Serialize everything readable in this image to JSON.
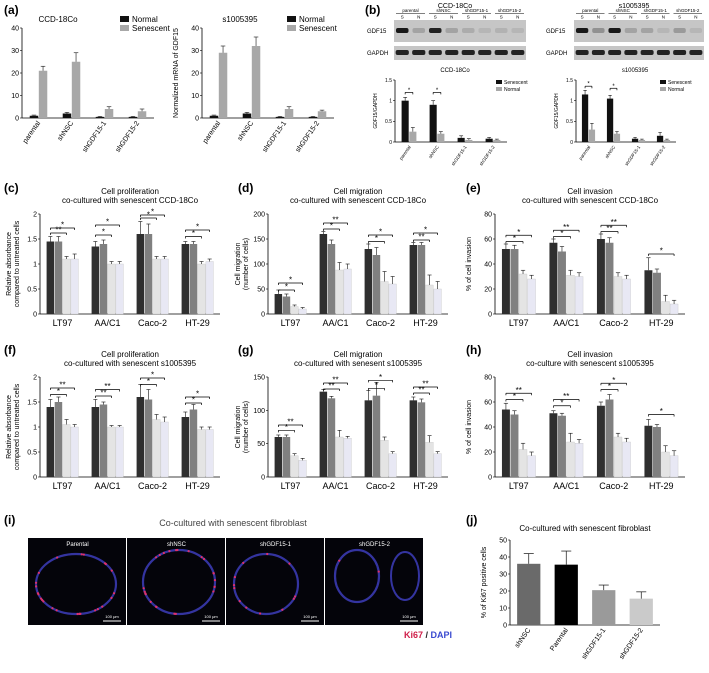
{
  "palette": {
    "normal": "#111111",
    "senescent": "#a8a8a8",
    "c1": "#2f2f2f",
    "c2": "#808080",
    "c3": "#e4e4e4",
    "c4": "#e8e8f4",
    "ki67": "#d0204a",
    "dapi": "#3a4ad0"
  },
  "panel_labels": [
    "(a)",
    "(b)",
    "(c)",
    "(d)",
    "(e)",
    "(f)",
    "(g)",
    "(h)",
    "(i)",
    "(j)"
  ],
  "western": {
    "left": {
      "title": "CCD-18Co",
      "groups": [
        "parental",
        "shNSC",
        "shGDF15-1",
        "shGDF15-2"
      ],
      "lanes": [
        "S",
        "N",
        "S",
        "N",
        "S",
        "N",
        "S",
        "N"
      ],
      "rows": [
        "GDF15",
        "GAPDH"
      ],
      "gdf15_intensity": [
        0.95,
        0.2,
        0.9,
        0.2,
        0.15,
        0.1,
        0.12,
        0.1
      ]
    },
    "right": {
      "title": "s1005395",
      "groups": [
        "parental",
        "shNSC",
        "shGDF15-1",
        "shGDF15-2"
      ],
      "lanes": [
        "S",
        "N",
        "S",
        "N",
        "S",
        "N",
        "S",
        "N"
      ],
      "rows": [
        "GDF15",
        "GAPDH"
      ],
      "gdf15_intensity": [
        0.95,
        0.3,
        0.95,
        0.2,
        0.2,
        0.1,
        0.25,
        0.1
      ]
    }
  },
  "micro": {
    "title": "Co-cultured with senescent fibroblast",
    "labels": [
      "Parental",
      "shNSC",
      "shGDF15-1",
      "shGDF15-2"
    ],
    "scalebar": "100 μm",
    "legend_ki67": "Ki67",
    "legend_sep": " / ",
    "legend_dapi": "DAPI"
  },
  "chart_data": [
    {
      "id": "a1",
      "panel": "(a)",
      "type": "bar",
      "title": "CCD-18Co",
      "ylabel": "Normalized mRNA of GDF15",
      "ylim": [
        0,
        40
      ],
      "yticks": [
        0,
        10,
        20,
        30,
        40
      ],
      "categories": [
        "parental",
        "shNSC",
        "shGDF15-1",
        "shGDF15-2"
      ],
      "series": [
        {
          "name": "Normal",
          "values": [
            1,
            2,
            0.5,
            0.5
          ],
          "err": [
            0.3,
            0.5,
            0.2,
            0.2
          ]
        },
        {
          "name": "Senescent",
          "values": [
            21,
            25,
            4,
            3
          ],
          "err": [
            2,
            4,
            1,
            1
          ]
        }
      ],
      "legend": "top-right"
    },
    {
      "id": "a2",
      "type": "bar",
      "title": "s1005395",
      "ylabel": "Normalized mRNA of GDF15",
      "ylim": [
        0,
        40
      ],
      "yticks": [
        0,
        10,
        20,
        30,
        40
      ],
      "categories": [
        "parental",
        "shNSC",
        "shGDF15-1",
        "shGDF15-2"
      ],
      "series": [
        {
          "name": "Normal",
          "values": [
            1,
            2,
            0.5,
            0.5
          ],
          "err": [
            0.3,
            0.5,
            0.2,
            0.2
          ]
        },
        {
          "name": "Senescent",
          "values": [
            29,
            32,
            4,
            3
          ],
          "err": [
            3,
            4,
            1,
            0.5
          ]
        }
      ],
      "legend": "top-right"
    },
    {
      "id": "b1",
      "type": "bar",
      "title": "CCD-18Co",
      "ylabel": "GDF15/GAPDH",
      "ylim": [
        0,
        1.5
      ],
      "yticks": [
        0,
        0.5,
        1,
        1.5
      ],
      "categories": [
        "parental",
        "shNSC",
        "shGDF15-1",
        "shGDF15-2"
      ],
      "series": [
        {
          "name": "Senescent",
          "values": [
            1.0,
            0.9,
            0.1,
            0.08
          ],
          "err": [
            0.08,
            0.1,
            0.05,
            0.03
          ]
        },
        {
          "name": "Normal",
          "values": [
            0.25,
            0.2,
            0.05,
            0.05
          ],
          "err": [
            0.1,
            0.05,
            0.03,
            0.02
          ]
        }
      ],
      "legend": "top-right",
      "sig": [
        {
          "g": [
            0,
            0
          ],
          "y": 1.2,
          "t": "*"
        },
        {
          "g": [
            1,
            1
          ],
          "y": 1.2,
          "t": "*"
        }
      ]
    },
    {
      "id": "b2",
      "type": "bar",
      "title": "s1005395",
      "ylabel": "GDF15/GAPDH",
      "ylim": [
        0,
        1.5
      ],
      "yticks": [
        0,
        0.5,
        1,
        1.5
      ],
      "categories": [
        "parental",
        "shNSC",
        "shGDF15-1",
        "shGDF15-2"
      ],
      "series": [
        {
          "name": "Senescent",
          "values": [
            1.15,
            1.05,
            0.08,
            0.15
          ],
          "err": [
            0.1,
            0.08,
            0.03,
            0.08
          ]
        },
        {
          "name": "Normal",
          "values": [
            0.3,
            0.2,
            0.05,
            0.05
          ],
          "err": [
            0.15,
            0.05,
            0.02,
            0.02
          ]
        }
      ],
      "legend": "top-right",
      "sig": [
        {
          "g": [
            0,
            0
          ],
          "y": 1.35,
          "t": "*"
        },
        {
          "g": [
            1,
            1
          ],
          "y": 1.3,
          "t": "*"
        }
      ]
    },
    {
      "id": "c",
      "type": "bar",
      "title": "Cell proliferation",
      "subtitle": "co-cultured with senescent CCD-18Co",
      "ylabel": "Relative absorbance compared to untreated cells",
      "ylim": [
        0,
        2.0
      ],
      "yticks": [
        0,
        0.5,
        1.0,
        1.5,
        2.0
      ],
      "categories": [
        "LT97",
        "AA/C1",
        "Caco-2",
        "HT-29"
      ],
      "series": [
        {
          "values": [
            1.45,
            1.35,
            1.6,
            1.4
          ],
          "err": [
            0.1,
            0.1,
            0.25,
            0.05
          ]
        },
        {
          "values": [
            1.45,
            1.4,
            1.6,
            1.4
          ],
          "err": [
            0.1,
            0.08,
            0.2,
            0.05
          ]
        },
        {
          "values": [
            1.1,
            1.0,
            1.1,
            1.0
          ],
          "err": [
            0.05,
            0.05,
            0.05,
            0.05
          ]
        },
        {
          "values": [
            1.1,
            1.0,
            1.1,
            1.05
          ],
          "err": [
            0.1,
            0.05,
            0.05,
            0.05
          ]
        }
      ],
      "sig": [
        {
          "g": [
            0,
            2
          ],
          "y": 1.62,
          "t": "**"
        },
        {
          "g": [
            0,
            3
          ],
          "y": 1.72,
          "t": "*"
        },
        {
          "g": [
            1,
            2
          ],
          "y": 1.58,
          "t": "*"
        },
        {
          "g": [
            1,
            3
          ],
          "y": 1.78,
          "t": "*"
        },
        {
          "g": [
            2,
            2
          ],
          "y": 1.92,
          "t": "*"
        },
        {
          "g": [
            2,
            3
          ],
          "y": 1.98,
          "t": "*"
        },
        {
          "g": [
            3,
            2
          ],
          "y": 1.55,
          "t": "*"
        },
        {
          "g": [
            3,
            3
          ],
          "y": 1.68,
          "t": "*"
        }
      ]
    },
    {
      "id": "d",
      "type": "bar",
      "title": "Cell migration",
      "subtitle": "co-cultured with senescent CCD-18Co",
      "ylabel": "Cell migration (number of cells)",
      "ylim": [
        0,
        200
      ],
      "yticks": [
        0,
        50,
        100,
        150,
        200
      ],
      "categories": [
        "LT97",
        "AA/C1",
        "Caco-2",
        "HT-29"
      ],
      "series": [
        {
          "values": [
            40,
            160,
            130,
            138
          ],
          "err": [
            8,
            5,
            10,
            5
          ]
        },
        {
          "values": [
            35,
            140,
            118,
            138
          ],
          "err": [
            5,
            8,
            15,
            5
          ]
        },
        {
          "values": [
            15,
            88,
            65,
            58
          ],
          "err": [
            3,
            15,
            20,
            20
          ]
        },
        {
          "values": [
            10,
            90,
            60,
            50
          ],
          "err": [
            3,
            10,
            15,
            15
          ]
        }
      ],
      "sig": [
        {
          "g": [
            0,
            2
          ],
          "y": 48,
          "t": "*"
        },
        {
          "g": [
            0,
            3
          ],
          "y": 62,
          "t": "*"
        },
        {
          "g": [
            1,
            2
          ],
          "y": 170,
          "t": "*"
        },
        {
          "g": [
            1,
            3
          ],
          "y": 182,
          "t": "**"
        },
        {
          "g": [
            2,
            2
          ],
          "y": 145,
          "t": "*"
        },
        {
          "g": [
            2,
            3
          ],
          "y": 158,
          "t": "*"
        },
        {
          "g": [
            3,
            2
          ],
          "y": 148,
          "t": "**"
        },
        {
          "g": [
            3,
            3
          ],
          "y": 162,
          "t": "*"
        }
      ]
    },
    {
      "id": "e",
      "type": "bar",
      "title": "Cell invasion",
      "subtitle": "co-cultured with senescent CCD-18Co",
      "ylabel": "% of cell invasion",
      "ylim": [
        0,
        80
      ],
      "yticks": [
        0,
        20,
        40,
        60,
        80
      ],
      "categories": [
        "LT97",
        "AA/C1",
        "Caco-2",
        "HT-29"
      ],
      "series": [
        {
          "values": [
            52,
            57,
            60,
            35
          ],
          "err": [
            4,
            3,
            4,
            10
          ]
        },
        {
          "values": [
            52,
            50,
            57,
            33
          ],
          "err": [
            3,
            4,
            4,
            3
          ]
        },
        {
          "values": [
            32,
            31,
            30,
            10
          ],
          "err": [
            3,
            4,
            3,
            5
          ]
        },
        {
          "values": [
            28,
            30,
            28,
            8
          ],
          "err": [
            3,
            3,
            3,
            3
          ]
        }
      ],
      "sig": [
        {
          "g": [
            0,
            2
          ],
          "y": 58,
          "t": "*"
        },
        {
          "g": [
            0,
            3
          ],
          "y": 63,
          "t": "*"
        },
        {
          "g": [
            1,
            2
          ],
          "y": 62,
          "t": "*"
        },
        {
          "g": [
            1,
            3
          ],
          "y": 67,
          "t": "**"
        },
        {
          "g": [
            2,
            2
          ],
          "y": 66,
          "t": "**"
        },
        {
          "g": [
            2,
            3
          ],
          "y": 71,
          "t": "**"
        },
        {
          "g": [
            3,
            3
          ],
          "y": 48,
          "t": "*"
        }
      ]
    },
    {
      "id": "f",
      "type": "bar",
      "title": "Cell proliferation",
      "subtitle": "co-cultured with senescent s1005395",
      "ylabel": "Relative absorbance compared to untreated cells",
      "ylim": [
        0,
        2.0
      ],
      "yticks": [
        0,
        0.5,
        1.0,
        1.5,
        2.0
      ],
      "categories": [
        "LT97",
        "AA/C1",
        "Caco-2",
        "HT-29"
      ],
      "series": [
        {
          "values": [
            1.4,
            1.4,
            1.6,
            1.2
          ],
          "err": [
            0.15,
            0.15,
            0.25,
            0.1
          ]
        },
        {
          "values": [
            1.5,
            1.45,
            1.55,
            1.35
          ],
          "err": [
            0.1,
            0.05,
            0.2,
            0.1
          ]
        },
        {
          "values": [
            1.05,
            1.0,
            1.15,
            0.95
          ],
          "err": [
            0.1,
            0.03,
            0.1,
            0.05
          ]
        },
        {
          "values": [
            1.0,
            1.0,
            1.1,
            0.95
          ],
          "err": [
            0.05,
            0.03,
            0.1,
            0.05
          ]
        }
      ],
      "sig": [
        {
          "g": [
            0,
            2
          ],
          "y": 1.65,
          "t": "*"
        },
        {
          "g": [
            0,
            3
          ],
          "y": 1.78,
          "t": "**"
        },
        {
          "g": [
            1,
            2
          ],
          "y": 1.62,
          "t": "**"
        },
        {
          "g": [
            1,
            3
          ],
          "y": 1.75,
          "t": "**"
        },
        {
          "g": [
            2,
            2
          ],
          "y": 1.85,
          "t": "*"
        },
        {
          "g": [
            2,
            3
          ],
          "y": 1.98,
          "t": "*"
        },
        {
          "g": [
            3,
            2
          ],
          "y": 1.48,
          "t": "*"
        },
        {
          "g": [
            3,
            3
          ],
          "y": 1.6,
          "t": "*"
        }
      ]
    },
    {
      "id": "g",
      "type": "bar",
      "title": "Cell migration",
      "subtitle": "co-cultured with senesent s1005395",
      "ylabel": "Cell migration (number of cells)",
      "ylim": [
        0,
        150
      ],
      "yticks": [
        0,
        50,
        100,
        150
      ],
      "categories": [
        "LT97",
        "AA/C1",
        "Caco-2",
        "HT-29"
      ],
      "series": [
        {
          "values": [
            60,
            128,
            115,
            115
          ],
          "err": [
            3,
            3,
            15,
            5
          ]
        },
        {
          "values": [
            60,
            118,
            122,
            112
          ],
          "err": [
            3,
            3,
            20,
            5
          ]
        },
        {
          "values": [
            32,
            60,
            55,
            52
          ],
          "err": [
            3,
            10,
            5,
            10
          ]
        },
        {
          "values": [
            25,
            58,
            35,
            35
          ],
          "err": [
            3,
            3,
            3,
            3
          ]
        }
      ],
      "sig": [
        {
          "g": [
            0,
            2
          ],
          "y": 70,
          "t": "*"
        },
        {
          "g": [
            0,
            3
          ],
          "y": 78,
          "t": "**"
        },
        {
          "g": [
            1,
            2
          ],
          "y": 132,
          "t": "**"
        },
        {
          "g": [
            1,
            3
          ],
          "y": 141,
          "t": "**"
        },
        {
          "g": [
            2,
            2
          ],
          "y": 133,
          "t": "*"
        },
        {
          "g": [
            2,
            3
          ],
          "y": 145,
          "t": "*"
        },
        {
          "g": [
            3,
            2
          ],
          "y": 126,
          "t": "**"
        },
        {
          "g": [
            3,
            3
          ],
          "y": 135,
          "t": "**"
        }
      ]
    },
    {
      "id": "h",
      "type": "bar",
      "title": "Cell invasion",
      "subtitle": "co-culture with senescent s1005395",
      "ylabel": "% of cell invasion",
      "ylim": [
        0,
        80
      ],
      "yticks": [
        0,
        20,
        40,
        60,
        80
      ],
      "categories": [
        "LT97",
        "AA/C1",
        "Caco-2",
        "HT-29"
      ],
      "series": [
        {
          "values": [
            54,
            51,
            57,
            41
          ],
          "err": [
            5,
            2,
            3,
            5
          ]
        },
        {
          "values": [
            50,
            49,
            62,
            40
          ],
          "err": [
            3,
            2,
            4,
            2
          ]
        },
        {
          "values": [
            22,
            28,
            32,
            20
          ],
          "err": [
            5,
            7,
            3,
            5
          ]
        },
        {
          "values": [
            17,
            27,
            28,
            17
          ],
          "err": [
            3,
            3,
            3,
            4
          ]
        }
      ],
      "sig": [
        {
          "g": [
            0,
            2
          ],
          "y": 62,
          "t": "*"
        },
        {
          "g": [
            0,
            3
          ],
          "y": 67,
          "t": "**"
        },
        {
          "g": [
            1,
            2
          ],
          "y": 57,
          "t": "*"
        },
        {
          "g": [
            1,
            3
          ],
          "y": 62,
          "t": "**"
        },
        {
          "g": [
            2,
            2
          ],
          "y": 70,
          "t": "*"
        },
        {
          "g": [
            2,
            3
          ],
          "y": 75,
          "t": "*"
        },
        {
          "g": [
            3,
            3
          ],
          "y": 50,
          "t": "*"
        }
      ]
    },
    {
      "id": "j",
      "type": "bar",
      "title": "Co-cultured with senescent fibroblast",
      "ylabel": "% of Ki67 positive cells",
      "ylim": [
        0,
        50
      ],
      "yticks": [
        0,
        10,
        20,
        30,
        40,
        50
      ],
      "categories": [
        "shNSC",
        "Parental",
        "shGDF15-1",
        "shGDF15-2"
      ],
      "values": [
        36,
        35.5,
        20.5,
        15.5
      ],
      "err": [
        6,
        8,
        3,
        4
      ],
      "colors": [
        "#6a6a6a",
        "#000000",
        "#9a9a9a",
        "#cacaca"
      ]
    }
  ]
}
